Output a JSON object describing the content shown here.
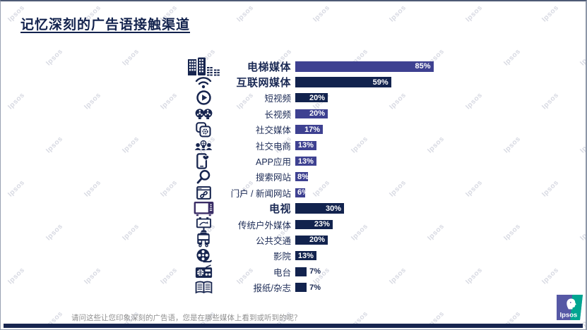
{
  "title": "记忆深刻的广告语接触渠道",
  "footnote": "请问这些让您印象深刻的广告语，您是在哪些媒体上看到或听到的呢？",
  "watermark_text": "Ipsos",
  "logo": {
    "text": "Ipsos",
    "purple": "#5658A5",
    "teal": "#00A591"
  },
  "colors": {
    "purple": "#3E4191",
    "navy": "#12234E",
    "icon_navy": "#17254F",
    "icon_tv_purple": "#3A2D66",
    "title": "#13234E",
    "label": "#1B2A55",
    "footnote_gray": "#8F8F8F",
    "bottom_strip": "#17254F"
  },
  "chart_data": {
    "type": "bar",
    "orientation": "horizontal",
    "title": "记忆深刻的广告语接触渠道",
    "unit": "%",
    "xlim": [
      0,
      100
    ],
    "legend": "none",
    "grid": false,
    "rows": [
      {
        "label": "电梯媒体",
        "value": 85,
        "icon": "buildings-icon",
        "color": "purple",
        "header": true,
        "value_position": "inside"
      },
      {
        "label": "互联网媒体",
        "value": 59,
        "icon": "wifi-icon",
        "color": "navy",
        "header": true,
        "value_position": "inside"
      },
      {
        "label": "短视频",
        "value": 20,
        "icon": "play-icon",
        "color": "navy",
        "header": false,
        "value_position": "inside"
      },
      {
        "label": "长视频",
        "value": 20,
        "icon": "film-reels-icon",
        "color": "purple",
        "header": false,
        "value_position": "inside"
      },
      {
        "label": "社交媒体",
        "value": 17,
        "icon": "apps-gear-icon",
        "color": "purple",
        "header": false,
        "value_position": "inside"
      },
      {
        "label": "社交电商",
        "value": 13,
        "icon": "people-globe-icon",
        "color": "purple",
        "header": false,
        "value_position": "inside"
      },
      {
        "label": "APP应用",
        "value": 13,
        "icon": "phone-heart-icon",
        "color": "purple",
        "header": false,
        "value_position": "inside"
      },
      {
        "label": "搜索网站",
        "value": 8,
        "icon": "magnifier-icon",
        "color": "purple",
        "header": false,
        "value_position": "inside"
      },
      {
        "label": "门户 / 新闻网站",
        "value": 6,
        "icon": "browser-link-icon",
        "color": "purple",
        "header": false,
        "value_position": "inside"
      },
      {
        "label": "电视",
        "value": 30,
        "icon": "tv-icon",
        "color": "navy",
        "header": true,
        "value_position": "inside"
      },
      {
        "label": "传统户外媒体",
        "value": 23,
        "icon": "billboard-icon",
        "color": "navy",
        "header": false,
        "value_position": "inside"
      },
      {
        "label": "公共交通",
        "value": 20,
        "icon": "bus-icon",
        "color": "navy",
        "header": false,
        "value_position": "inside"
      },
      {
        "label": "影院",
        "value": 13,
        "icon": "cinema-reel-icon",
        "color": "navy",
        "header": false,
        "value_position": "inside"
      },
      {
        "label": "电台",
        "value": 7,
        "icon": "radio-icon",
        "color": "navy",
        "header": false,
        "value_position": "outside"
      },
      {
        "label": "报纸/杂志",
        "value": 7,
        "icon": "open-book-icon",
        "color": "navy",
        "header": false,
        "value_position": "outside"
      }
    ]
  }
}
